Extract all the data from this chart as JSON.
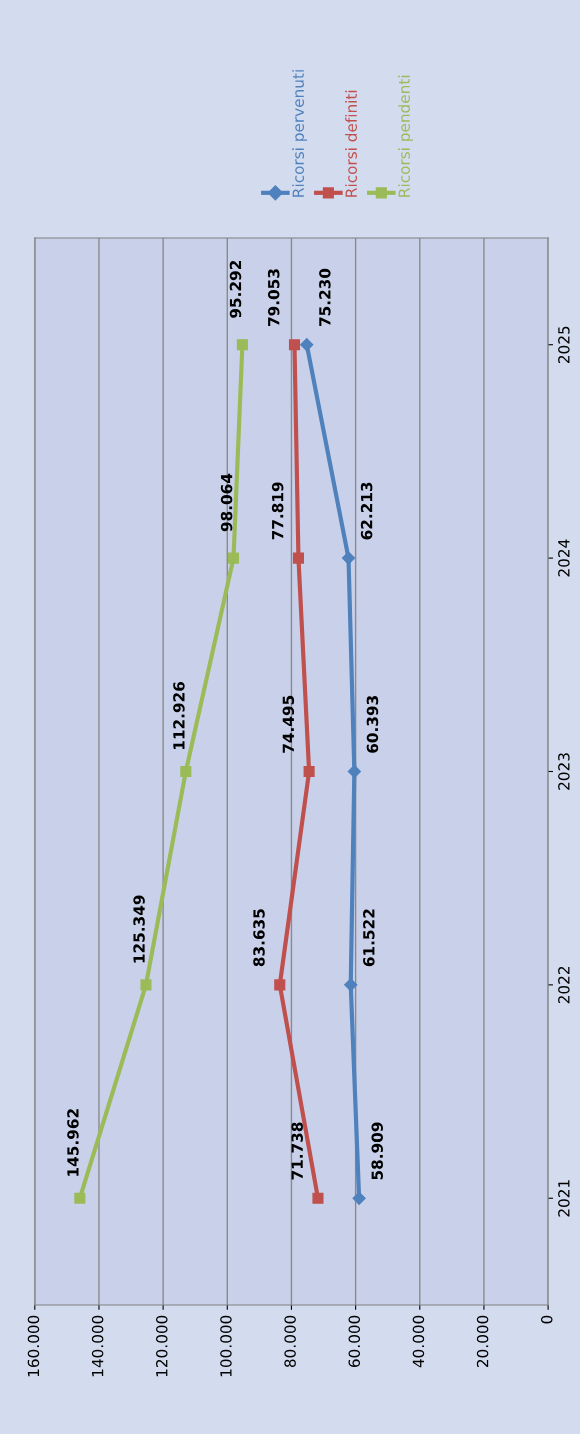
{
  "chart_data": {
    "type": "line",
    "orientation": "horizontal",
    "categories": [
      "2025",
      "2024",
      "2023",
      "2022",
      "2021"
    ],
    "series": [
      {
        "name": "Ricorsi pervenuti",
        "color": "#4f81bd",
        "marker": "diamond",
        "values": [
          75230,
          62213,
          60393,
          61522,
          58909
        ],
        "value_labels": [
          "75.230",
          "62.213",
          "60.393",
          "61.522",
          "58.909"
        ]
      },
      {
        "name": "Ricorsi definiti",
        "color": "#c0504d",
        "marker": "square",
        "values": [
          79053,
          77819,
          74495,
          83635,
          71738
        ],
        "value_labels": [
          "79.053",
          "77.819",
          "74.495",
          "83.635",
          "71.738"
        ]
      },
      {
        "name": "Ricorsi pendenti",
        "color": "#9bbb59",
        "marker": "square",
        "values": [
          95292,
          98064,
          112926,
          125349,
          145962
        ],
        "value_labels": [
          "95.292",
          "98.064",
          "112.926",
          "125.349",
          "145.962"
        ]
      }
    ],
    "xlim": [
      160000,
      0
    ],
    "xticks": [
      {
        "value": 160000,
        "label": "160.000"
      },
      {
        "value": 140000,
        "label": "140.000"
      },
      {
        "value": 120000,
        "label": "120.000"
      },
      {
        "value": 100000,
        "label": "100.000"
      },
      {
        "value": 80000,
        "label": "80.000"
      },
      {
        "value": 60000,
        "label": "60.000"
      },
      {
        "value": 40000,
        "label": "40.000"
      },
      {
        "value": 20000,
        "label": "20.000"
      },
      {
        "value": 0,
        "label": "0"
      }
    ],
    "grid": "x",
    "legend": "top",
    "line_style": "solid"
  }
}
